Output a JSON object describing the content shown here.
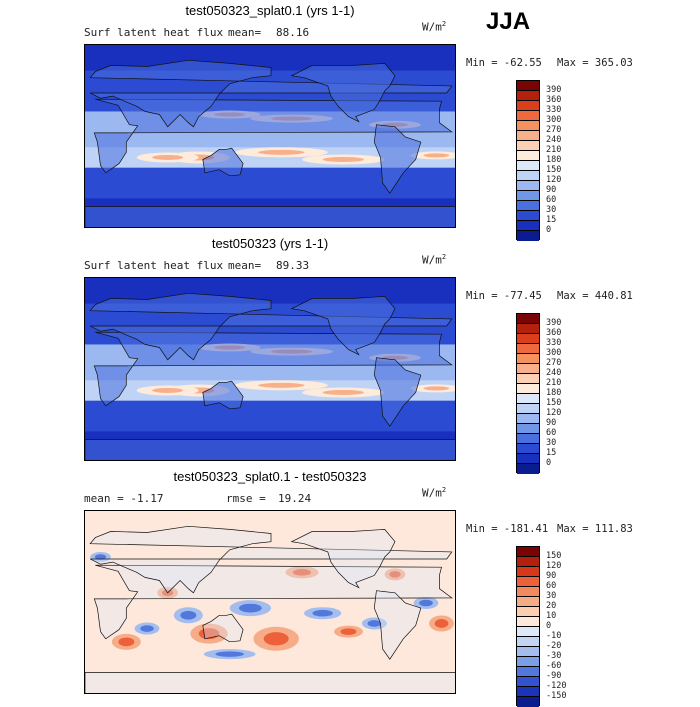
{
  "season": "JJA",
  "panels": [
    {
      "title": "test050323_splat0.1 (yrs 1-1)",
      "left_label": "Surf latent heat flux",
      "stat_label": "mean=",
      "stat_value": "88.16",
      "units_base": "W/m",
      "units_exp": "2",
      "min_text": "Min = -62.55",
      "max_text": "Max = 365.03",
      "palette": "abs"
    },
    {
      "title": "test050323 (yrs 1-1)",
      "left_label": "Surf latent heat flux",
      "stat_label": "mean=",
      "stat_value": "89.33",
      "units_base": "W/m",
      "units_exp": "2",
      "min_text": "Min = -77.45",
      "max_text": "Max = 440.81",
      "palette": "abs"
    },
    {
      "title": "test050323_splat0.1 - test050323",
      "left_label": "mean =  -1.17",
      "stat_label": "rmse =",
      "stat_value": "19.24",
      "units_base": "W/m",
      "units_exp": "2",
      "min_text": "Min = -181.41",
      "max_text": "Max = 111.83",
      "palette": "diff"
    }
  ],
  "chart_data": [
    {
      "type": "heatmap",
      "title": "test050323_splat0.1 (yrs 1-1)",
      "variable": "Surf latent heat flux",
      "units": "W/m2",
      "mean": 88.16,
      "min": -62.55,
      "max": 365.03,
      "colorbar_levels": [
        390,
        360,
        330,
        300,
        270,
        240,
        210,
        180,
        150,
        120,
        90,
        60,
        30,
        15,
        0
      ],
      "colorbar_colors": [
        "#7a0403",
        "#b3200c",
        "#db3e1a",
        "#ee6a3e",
        "#f5905f",
        "#f8b08c",
        "#fbd0b5",
        "#fdebdc",
        "#dce8fa",
        "#bfd3f6",
        "#9bb8f0",
        "#7096e6",
        "#4a6fde",
        "#2a4bd2",
        "#1830bd",
        "#0a1c8f"
      ]
    },
    {
      "type": "heatmap",
      "title": "test050323 (yrs 1-1)",
      "variable": "Surf latent heat flux",
      "units": "W/m2",
      "mean": 89.33,
      "min": -77.45,
      "max": 440.81,
      "colorbar_levels": [
        390,
        360,
        330,
        300,
        270,
        240,
        210,
        180,
        150,
        120,
        90,
        60,
        30,
        15,
        0
      ],
      "colorbar_colors": [
        "#7a0403",
        "#b3200c",
        "#db3e1a",
        "#ee6a3e",
        "#f5905f",
        "#f8b08c",
        "#fbd0b5",
        "#fdebdc",
        "#dce8fa",
        "#bfd3f6",
        "#9bb8f0",
        "#7096e6",
        "#4a6fde",
        "#2a4bd2",
        "#1830bd",
        "#0a1c8f"
      ]
    },
    {
      "type": "heatmap",
      "title": "test050323_splat0.1 - test050323",
      "units": "W/m2",
      "mean": -1.17,
      "rmse": 19.24,
      "min": -181.41,
      "max": 111.83,
      "colorbar_levels": [
        150,
        120,
        90,
        60,
        30,
        20,
        10,
        0,
        -10,
        -20,
        -30,
        -60,
        -90,
        -120,
        -150
      ],
      "colorbar_colors": [
        "#7a0403",
        "#b3200c",
        "#d8381a",
        "#ec603a",
        "#f38a5f",
        "#f7ac88",
        "#fbcdb1",
        "#fde8db",
        "#dde9f8",
        "#c3d5f4",
        "#a3bdef",
        "#7c9ee7",
        "#5278dc",
        "#3252cf",
        "#1c34b8",
        "#0b1d8c"
      ]
    }
  ]
}
